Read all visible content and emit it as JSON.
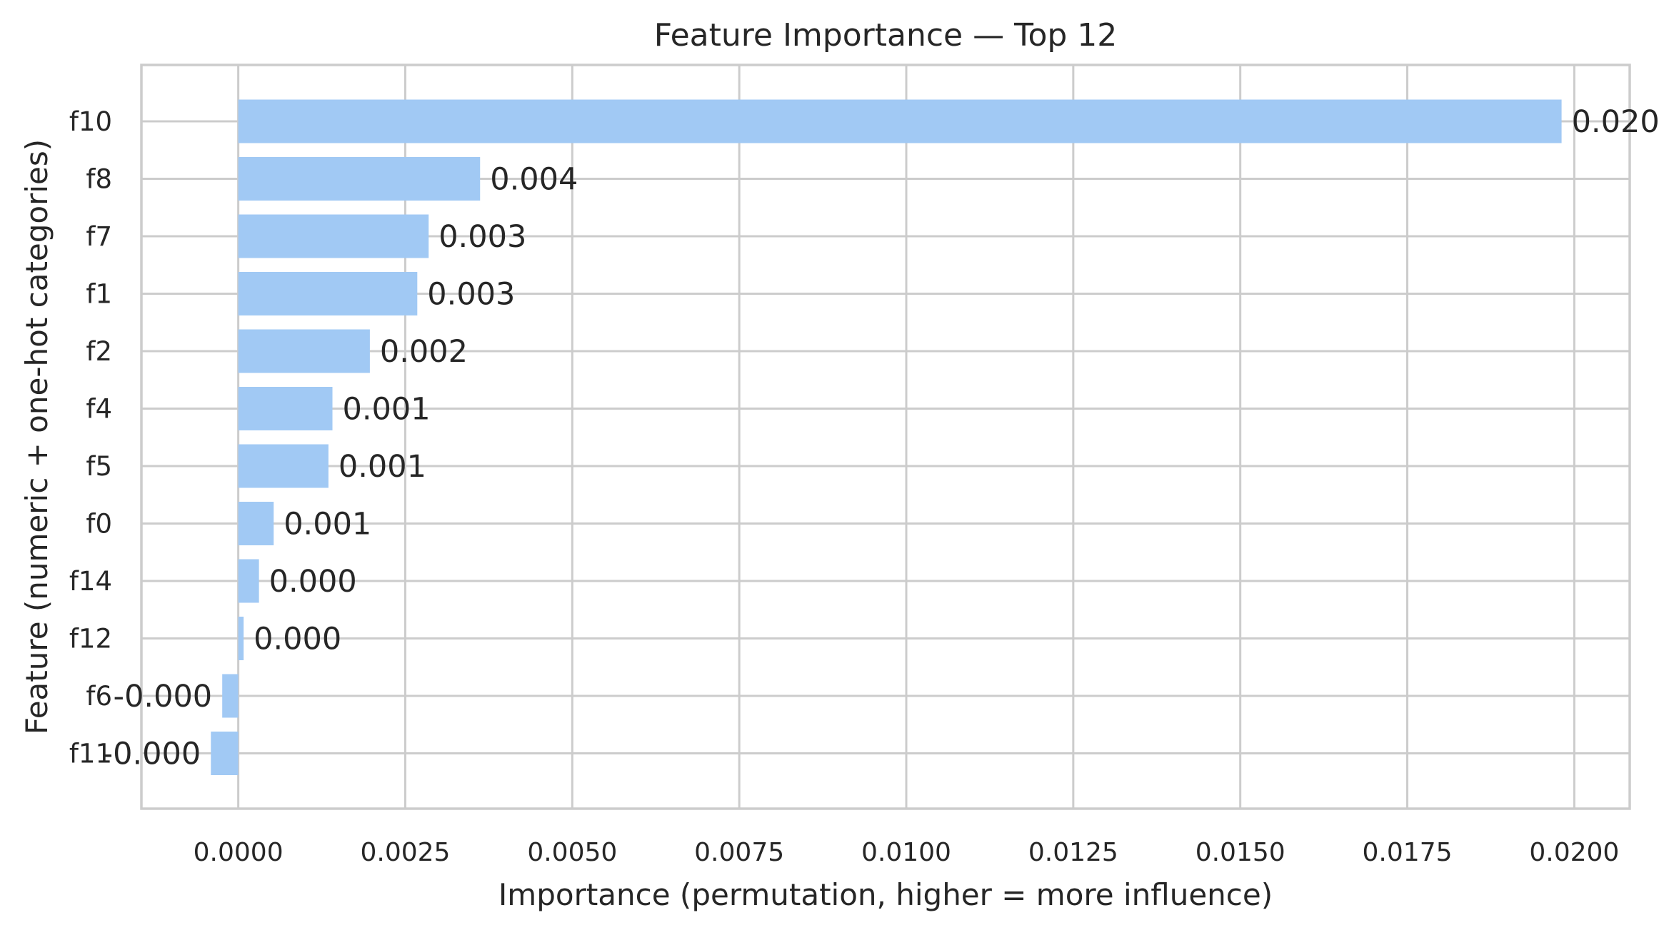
{
  "colors": {
    "bar": "#a1c9f4",
    "grid": "#cccccc",
    "text": "#262626",
    "background": "#ffffff"
  },
  "chart_data": {
    "type": "bar",
    "orientation": "horizontal",
    "title": "Feature Importance — Top 12",
    "xlabel": "Importance (permutation, higher = more influence)",
    "ylabel": "Feature (numeric + one-hot categories)",
    "xlim": [
      -0.00145,
      0.02083
    ],
    "xticks": [
      0.0,
      0.0025,
      0.005,
      0.0075,
      0.01,
      0.0125,
      0.015,
      0.0175,
      0.02
    ],
    "xtick_labels": [
      "0.0000",
      "0.0025",
      "0.0050",
      "0.0075",
      "0.0100",
      "0.0125",
      "0.0150",
      "0.0175",
      "0.0200"
    ],
    "grid": true,
    "legend": "none",
    "categories": [
      "f10",
      "f8",
      "f7",
      "f1",
      "f2",
      "f4",
      "f5",
      "f0",
      "f14",
      "f12",
      "f6",
      "f11"
    ],
    "values": [
      0.01981,
      0.00362,
      0.00285,
      0.00268,
      0.00197,
      0.00141,
      0.00135,
      0.00053,
      0.00031,
      8e-05,
      -0.00024,
      -0.00041
    ],
    "data_labels": [
      "0.020",
      "0.004",
      "0.003",
      "0.003",
      "0.002",
      "0.001",
      "0.001",
      "0.001",
      "0.000",
      "0.000",
      "-0.000",
      "-0.000"
    ]
  }
}
